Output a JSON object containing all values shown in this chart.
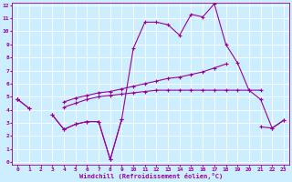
{
  "xlabel": "Windchill (Refroidissement éolien,°C)",
  "bg_color": "#cceeff",
  "grid_color": "#b0d8e8",
  "line_color": "#990099",
  "x_data": [
    0,
    1,
    2,
    3,
    4,
    5,
    6,
    7,
    8,
    9,
    10,
    11,
    12,
    13,
    14,
    15,
    16,
    17,
    18,
    19,
    20,
    21,
    22,
    23
  ],
  "line_main": [
    4.8,
    4.1,
    null,
    3.6,
    2.5,
    2.9,
    3.1,
    3.1,
    0.2,
    3.3,
    8.7,
    10.7,
    10.7,
    10.5,
    9.7,
    11.3,
    11.1,
    12.1,
    9.0,
    7.6,
    5.5,
    4.8,
    2.6,
    3.2
  ],
  "line_low": [
    4.8,
    4.1,
    null,
    3.6,
    2.5,
    2.9,
    3.1,
    3.1,
    0.2,
    3.3,
    null,
    null,
    null,
    null,
    null,
    null,
    null,
    null,
    null,
    null,
    null,
    2.7,
    2.6,
    3.2
  ],
  "line_mid1": [
    4.8,
    null,
    null,
    null,
    4.2,
    4.5,
    4.8,
    5.0,
    5.1,
    5.2,
    5.3,
    5.4,
    5.5,
    5.5,
    5.5,
    5.5,
    5.5,
    5.5,
    5.5,
    5.5,
    5.5,
    5.5,
    null,
    null
  ],
  "line_mid2": [
    4.8,
    null,
    null,
    null,
    4.6,
    4.9,
    5.1,
    5.3,
    5.4,
    5.6,
    5.8,
    6.0,
    6.2,
    6.4,
    6.5,
    6.7,
    6.9,
    7.2,
    7.5,
    null,
    null,
    null,
    null,
    null
  ],
  "ylim": [
    0,
    12
  ],
  "xlim": [
    -0.5,
    23.5
  ],
  "yticks": [
    0,
    1,
    2,
    3,
    4,
    5,
    6,
    7,
    8,
    9,
    10,
    11,
    12
  ],
  "xticks": [
    0,
    1,
    2,
    3,
    4,
    5,
    6,
    7,
    8,
    9,
    10,
    11,
    12,
    13,
    14,
    15,
    16,
    17,
    18,
    19,
    20,
    21,
    22,
    23
  ]
}
